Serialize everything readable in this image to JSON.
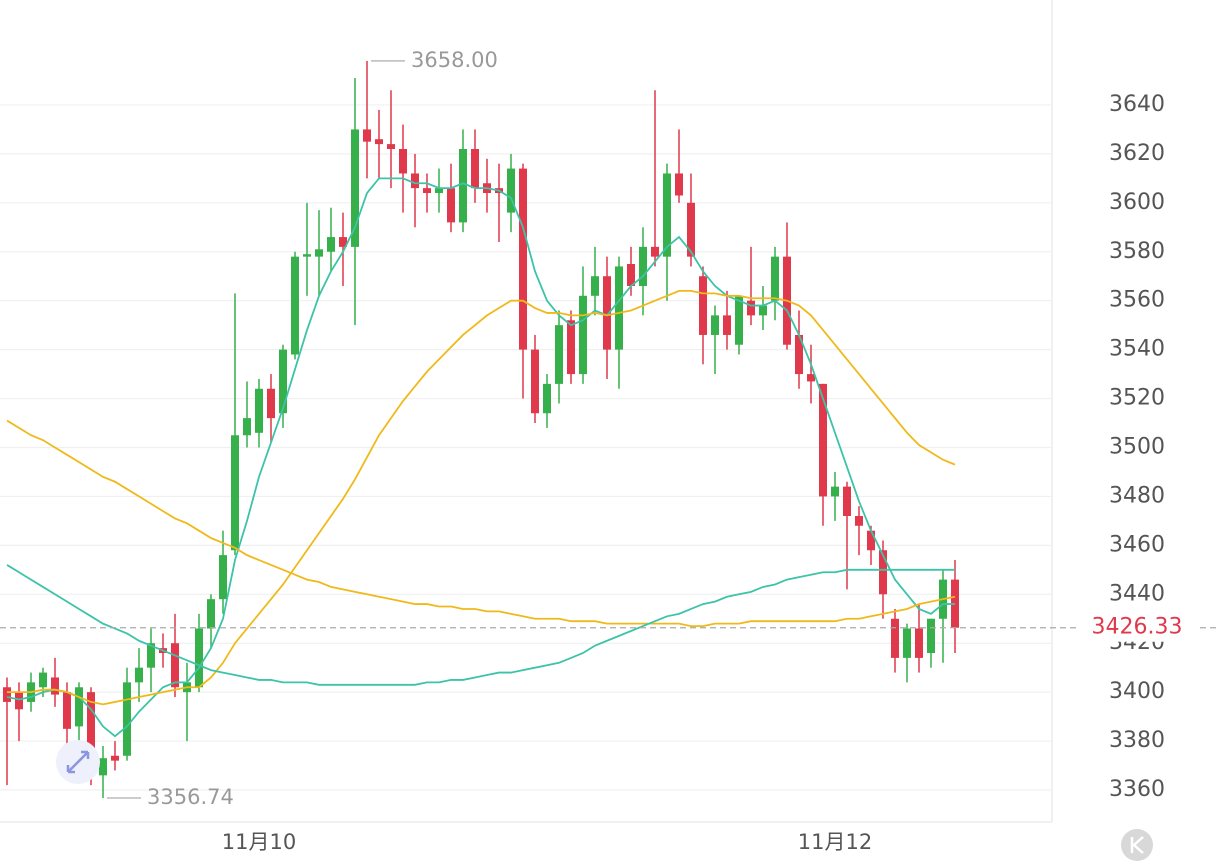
{
  "chart_data": {
    "type": "candlestick",
    "categories": [
      null,
      null,
      null,
      null,
      null,
      null,
      null,
      null,
      null,
      null,
      null,
      null,
      null,
      null,
      null,
      null,
      null,
      null,
      null,
      null,
      null,
      "11月10",
      null,
      null,
      null,
      null,
      null,
      null,
      null,
      null,
      null,
      null,
      null,
      null,
      null,
      null,
      null,
      null,
      null,
      null,
      null,
      null,
      null,
      null,
      null,
      null,
      null,
      null,
      null,
      null,
      null,
      null,
      null,
      null,
      null,
      null,
      null,
      null,
      null,
      null,
      null,
      null,
      null,
      null,
      null,
      null,
      null,
      null,
      null,
      "11月12",
      null,
      null,
      null,
      null,
      null,
      null,
      null,
      null,
      null,
      null
    ],
    "ohlc": {
      "open": [
        3402,
        3400,
        3396,
        3402,
        3406,
        3400,
        3386,
        3400,
        3366,
        3374,
        3374,
        3404,
        3410,
        3418,
        3420,
        3400,
        3402,
        3426,
        3438,
        3458,
        3505,
        3506,
        3524,
        3514,
        3538,
        3578,
        3578,
        3580,
        3586,
        3582,
        3630,
        3626,
        3624,
        3622,
        3612,
        3606,
        3604,
        3606,
        3592,
        3622,
        3608,
        3606,
        3596,
        3614,
        3540,
        3514,
        3526,
        3552,
        3530,
        3562,
        3570,
        3540,
        3575,
        3566,
        3582,
        3578,
        3612,
        3600,
        3570,
        3546,
        3554,
        3542,
        3560,
        3554,
        3560,
        3578,
        3546,
        3530,
        3526,
        3480,
        3484,
        3472,
        3466,
        3458,
        3430,
        3414,
        3426,
        3416,
        3430,
        3446
      ],
      "high": [
        3406,
        3404,
        3408,
        3410,
        3414,
        3404,
        3404,
        3402,
        3378,
        3380,
        3410,
        3418,
        3426,
        3424,
        3432,
        3412,
        3432,
        3440,
        3466,
        3563,
        3527,
        3528,
        3530,
        3542,
        3580,
        3600,
        3597,
        3598,
        3596,
        3651,
        3658,
        3638,
        3646,
        3632,
        3620,
        3612,
        3614,
        3616,
        3630,
        3630,
        3618,
        3616,
        3620,
        3616,
        3546,
        3530,
        3556,
        3556,
        3574,
        3582,
        3578,
        3578,
        3582,
        3590,
        3646,
        3616,
        3630,
        3612,
        3574,
        3558,
        3564,
        3562,
        3582,
        3566,
        3582,
        3592,
        3556,
        3542,
        3526,
        3490,
        3486,
        3476,
        3468,
        3462,
        3434,
        3428,
        3436,
        3430,
        3450,
        3454
      ],
      "low": [
        3362,
        3380,
        3392,
        3398,
        3394,
        3375,
        3378,
        3362,
        3356.74,
        3368,
        3372,
        3396,
        3400,
        3410,
        3398,
        3380,
        3400,
        3418,
        3432,
        3456,
        3500,
        3500,
        3502,
        3508,
        3536,
        3562,
        3562,
        3572,
        3566,
        3550,
        3610,
        3610,
        3606,
        3596,
        3590,
        3596,
        3596,
        3588,
        3588,
        3600,
        3596,
        3584,
        3588,
        3520,
        3510,
        3508,
        3518,
        3526,
        3526,
        3554,
        3528,
        3524,
        3562,
        3554,
        3574,
        3560,
        3600,
        3574,
        3534,
        3530,
        3540,
        3538,
        3550,
        3548,
        3552,
        3540,
        3524,
        3518,
        3468,
        3470,
        3442,
        3456,
        3452,
        3430,
        3408,
        3404,
        3408,
        3410,
        3412,
        3416
      ],
      "close": [
        3396,
        3393,
        3404,
        3408,
        3399,
        3385,
        3402,
        3368,
        3373,
        3372,
        3404,
        3410,
        3420,
        3416,
        3402,
        3404,
        3426,
        3438,
        3456,
        3505,
        3512,
        3524,
        3512,
        3540,
        3578,
        3579,
        3581,
        3586,
        3582,
        3630,
        3625,
        3624,
        3622,
        3612,
        3606,
        3604,
        3606,
        3592,
        3622,
        3606,
        3604,
        3604,
        3614,
        3540,
        3514,
        3526,
        3550,
        3530,
        3562,
        3570,
        3540,
        3574,
        3566,
        3582,
        3578,
        3612,
        3603,
        3578,
        3546,
        3554,
        3546,
        3562,
        3554,
        3558,
        3578,
        3542,
        3530,
        3527,
        3480,
        3484,
        3472,
        3468,
        3458,
        3440,
        3414,
        3426,
        3414,
        3430,
        3446,
        3426.33
      ]
    },
    "up_color": "#35b04a",
    "down_color": "#e0394b",
    "lines": [
      {
        "color": "#3cc3a8",
        "values": [
          3398,
          3397,
          3398,
          3400,
          3401,
          3400,
          3398,
          3393,
          3386,
          3382,
          3386,
          3392,
          3397,
          3402,
          3404,
          3404,
          3410,
          3418,
          3430,
          3454,
          3470,
          3488,
          3502,
          3516,
          3532,
          3548,
          3562,
          3572,
          3580,
          3590,
          3604,
          3610,
          3610,
          3610,
          3608,
          3608,
          3606,
          3606,
          3608,
          3606,
          3606,
          3605,
          3602,
          3590,
          3572,
          3560,
          3554,
          3550,
          3552,
          3556,
          3554,
          3560,
          3566,
          3570,
          3576,
          3582,
          3586,
          3580,
          3572,
          3566,
          3562,
          3560,
          3558,
          3558,
          3560,
          3556,
          3546,
          3534,
          3520,
          3506,
          3492,
          3478,
          3466,
          3456,
          3446,
          3440,
          3434,
          3432,
          3436,
          3436
        ]
      },
      {
        "color": "#f0b91a",
        "values": [
          3400,
          3400,
          3400,
          3401,
          3401,
          3400,
          3398,
          3396,
          3395,
          3396,
          3397,
          3398,
          3399,
          3400,
          3401,
          3402,
          3402,
          3406,
          3412,
          3420,
          3426,
          3432,
          3438,
          3444,
          3451,
          3458,
          3465,
          3472,
          3479,
          3487,
          3496,
          3505,
          3512,
          3519,
          3525,
          3531,
          3536,
          3541,
          3546,
          3550,
          3554,
          3557,
          3560,
          3560,
          3557,
          3555,
          3555,
          3554,
          3554,
          3555,
          3554,
          3555,
          3556,
          3558,
          3560,
          3562,
          3564,
          3564,
          3563,
          3563,
          3562,
          3562,
          3561,
          3561,
          3561,
          3560,
          3558,
          3554,
          3548,
          3542,
          3536,
          3530,
          3524,
          3518,
          3512,
          3506,
          3501,
          3498,
          3495,
          3493
        ]
      },
      {
        "color": "#f0b91a",
        "values": [
          3511,
          3508,
          3505,
          3503,
          3500,
          3497,
          3494,
          3491,
          3488,
          3486,
          3483,
          3480,
          3477,
          3474,
          3471,
          3469,
          3466,
          3463,
          3461,
          3459,
          3456,
          3454,
          3452,
          3450,
          3448,
          3446,
          3445,
          3443,
          3442,
          3441,
          3440,
          3439,
          3438,
          3437,
          3436,
          3436,
          3435,
          3435,
          3434,
          3434,
          3433,
          3433,
          3432,
          3431,
          3430,
          3430,
          3430,
          3429,
          3429,
          3429,
          3428,
          3428,
          3428,
          3428,
          3428,
          3428,
          3428,
          3427,
          3427,
          3428,
          3428,
          3428,
          3429,
          3429,
          3429,
          3429,
          3429,
          3429,
          3429,
          3429,
          3430,
          3430,
          3431,
          3432,
          3433,
          3434,
          3436,
          3437,
          3438,
          3439
        ]
      },
      {
        "color": "#3cc3a8",
        "values": [
          3452,
          3449,
          3446,
          3443,
          3440,
          3437,
          3434,
          3431,
          3428,
          3426,
          3424,
          3421,
          3419,
          3417,
          3415,
          3413,
          3411,
          3409,
          3408,
          3407,
          3406,
          3405,
          3405,
          3404,
          3404,
          3404,
          3403,
          3403,
          3403,
          3403,
          3403,
          3403,
          3403,
          3403,
          3403,
          3404,
          3404,
          3405,
          3405,
          3406,
          3407,
          3408,
          3408,
          3409,
          3410,
          3411,
          3412,
          3414,
          3416,
          3419,
          3421,
          3423,
          3425,
          3427,
          3429,
          3431,
          3432,
          3434,
          3436,
          3437,
          3439,
          3440,
          3441,
          3443,
          3444,
          3446,
          3447,
          3448,
          3449,
          3449,
          3450,
          3450,
          3450,
          3450,
          3450,
          3450,
          3450,
          3450,
          3450,
          3450
        ]
      }
    ],
    "ylim": [
      3345.7,
      3682.9
    ],
    "yticks": [
      3360,
      3380,
      3400,
      3420,
      3440,
      3460,
      3480,
      3500,
      3520,
      3540,
      3560,
      3580,
      3600,
      3620,
      3640
    ],
    "grid": true,
    "annotations": {
      "high": {
        "value": 3658,
        "label": "3658.00"
      },
      "low": 3356.74
    },
    "last_price": 3426.33
  }
}
